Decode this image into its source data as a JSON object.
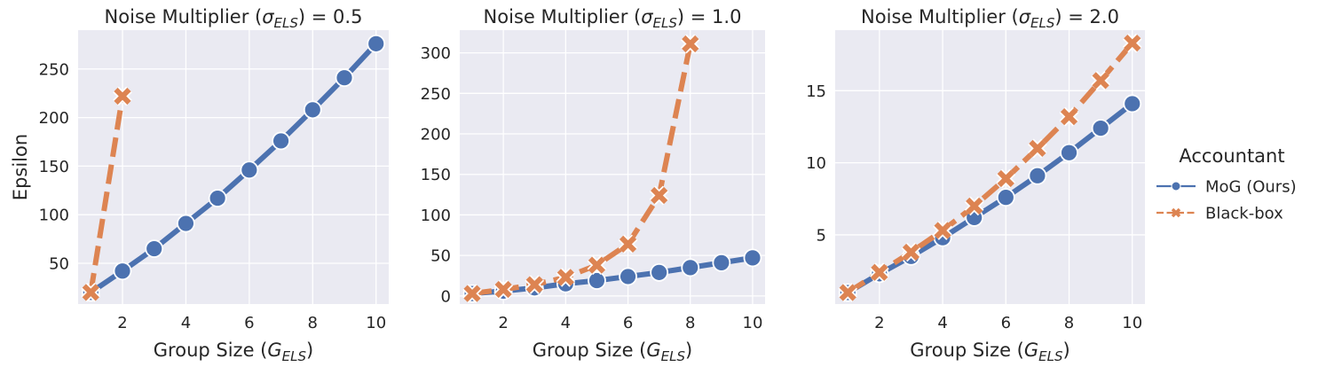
{
  "chart_data": [
    {
      "type": "line",
      "title_prefix": "Noise Multiplier (",
      "title_sym": "σ",
      "title_sub": "ELS",
      "title_suffix": ") = 0.5",
      "xlabel_prefix": "Group Size (",
      "xlabel_sym": "G",
      "xlabel_sub": "ELS",
      "xlabel_suffix": ")",
      "ylabel": "Epsilon",
      "xlim": [
        0.6,
        10.4
      ],
      "ylim": [
        8,
        290
      ],
      "xticks": [
        2,
        4,
        6,
        8,
        10
      ],
      "yticks": [
        50,
        100,
        150,
        200,
        250
      ],
      "series": [
        {
          "name": "MoG (Ours)",
          "x": [
            1,
            2,
            3,
            4,
            5,
            6,
            7,
            8,
            9,
            10
          ],
          "y": [
            20,
            42,
            65,
            91,
            117,
            146,
            176,
            208,
            241,
            276
          ]
        },
        {
          "name": "Black-box",
          "x": [
            1,
            2
          ],
          "y": [
            20,
            222
          ]
        }
      ]
    },
    {
      "type": "line",
      "title_prefix": "Noise Multiplier (",
      "title_sym": "σ",
      "title_sub": "ELS",
      "title_suffix": ") = 1.0",
      "xlabel_prefix": "Group Size (",
      "xlabel_sym": "G",
      "xlabel_sub": "ELS",
      "xlabel_suffix": ")",
      "ylabel": "",
      "xlim": [
        0.6,
        10.4
      ],
      "ylim": [
        -10,
        328
      ],
      "xticks": [
        2,
        4,
        6,
        8,
        10
      ],
      "yticks": [
        0,
        50,
        100,
        150,
        200,
        250,
        300
      ],
      "series": [
        {
          "name": "MoG (Ours)",
          "x": [
            1,
            2,
            3,
            4,
            5,
            6,
            7,
            8,
            9,
            10
          ],
          "y": [
            3,
            6,
            10,
            15,
            19,
            24,
            29,
            35,
            41,
            47
          ]
        },
        {
          "name": "Black-box",
          "x": [
            1,
            2,
            3,
            4,
            5,
            6,
            7,
            8
          ],
          "y": [
            3,
            8,
            14,
            23,
            38,
            64,
            124,
            311
          ]
        }
      ]
    },
    {
      "type": "line",
      "title_prefix": "Noise Multiplier (",
      "title_sym": "σ",
      "title_sub": "ELS",
      "title_suffix": ") = 2.0",
      "xlabel_prefix": "Group Size (",
      "xlabel_sym": "G",
      "xlabel_sub": "ELS",
      "xlabel_suffix": ")",
      "ylabel": "",
      "xlim": [
        0.6,
        10.4
      ],
      "ylim": [
        0.2,
        19.2
      ],
      "xticks": [
        2,
        4,
        6,
        8,
        10
      ],
      "yticks": [
        5,
        10,
        15
      ],
      "series": [
        {
          "name": "MoG (Ours)",
          "x": [
            1,
            2,
            3,
            4,
            5,
            6,
            7,
            8,
            9,
            10
          ],
          "y": [
            1.0,
            2.3,
            3.5,
            4.8,
            6.2,
            7.6,
            9.1,
            10.7,
            12.4,
            14.1
          ]
        },
        {
          "name": "Black-box",
          "x": [
            1,
            2,
            3,
            4,
            5,
            6,
            7,
            8,
            9,
            10
          ],
          "y": [
            1.0,
            2.4,
            3.8,
            5.3,
            7.0,
            8.9,
            11.0,
            13.2,
            15.7,
            18.3
          ]
        }
      ]
    }
  ],
  "legend": {
    "title": "Accountant",
    "items": [
      {
        "label": "MoG (Ours)",
        "color": "#4c72b0",
        "marker": "circle",
        "dash": "solid"
      },
      {
        "label": "Black-box",
        "color": "#dd8452",
        "marker": "x",
        "dash": "dashed"
      }
    ]
  },
  "style": {
    "panel_bg": "#eaeaf2",
    "grid_color": "#ffffff",
    "mog_color": "#4c72b0",
    "blackbox_color": "#dd8452"
  }
}
